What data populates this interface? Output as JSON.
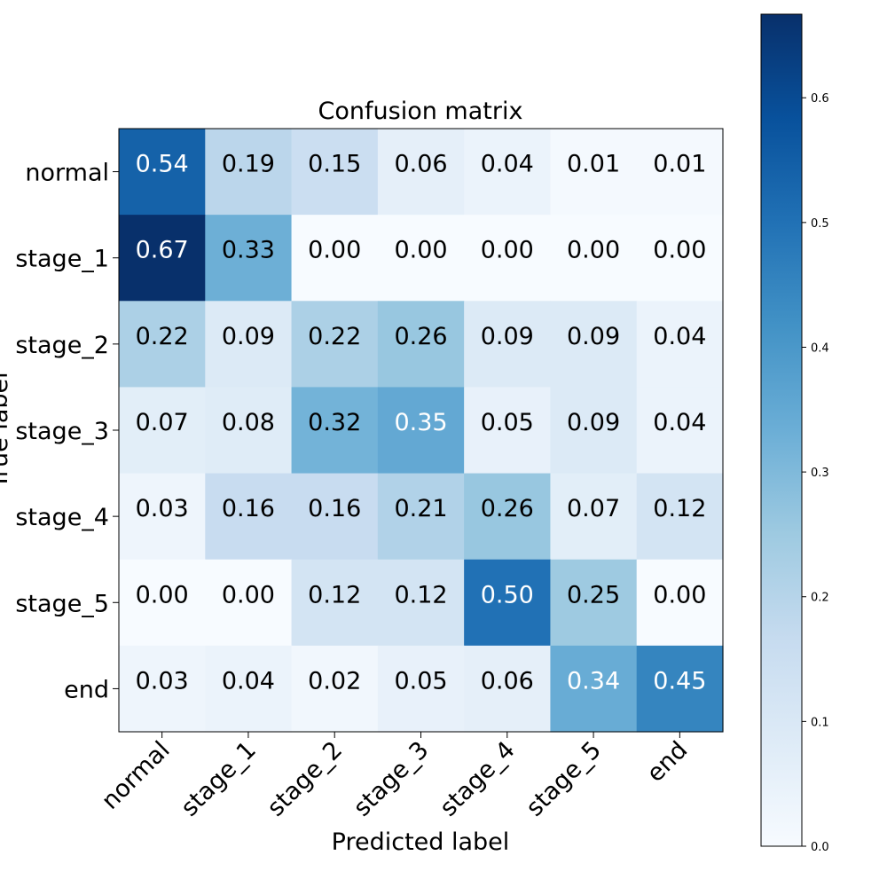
{
  "chart_data": {
    "type": "heatmap",
    "title": "Confusion matrix",
    "xlabel": "Predicted label",
    "ylabel": "True label",
    "x_categories": [
      "normal",
      "stage_1",
      "stage_2",
      "stage_3",
      "stage_4",
      "stage_5",
      "end"
    ],
    "y_categories": [
      "normal",
      "stage_1",
      "stage_2",
      "stage_3",
      "stage_4",
      "stage_5",
      "end"
    ],
    "values": [
      [
        0.54,
        0.19,
        0.15,
        0.06,
        0.04,
        0.01,
        0.01
      ],
      [
        0.67,
        0.33,
        0.0,
        0.0,
        0.0,
        0.0,
        0.0
      ],
      [
        0.22,
        0.09,
        0.22,
        0.26,
        0.09,
        0.09,
        0.04
      ],
      [
        0.07,
        0.08,
        0.32,
        0.35,
        0.05,
        0.09,
        0.04
      ],
      [
        0.03,
        0.16,
        0.16,
        0.21,
        0.26,
        0.07,
        0.12
      ],
      [
        0.0,
        0.0,
        0.12,
        0.12,
        0.5,
        0.25,
        0.0
      ],
      [
        0.03,
        0.04,
        0.02,
        0.05,
        0.06,
        0.34,
        0.45
      ]
    ],
    "colormap": "Blues",
    "colorbar": {
      "min": 0.0,
      "max": 0.667,
      "ticks": [
        "0.0",
        "0.1",
        "0.2",
        "0.3",
        "0.4",
        "0.5",
        "0.6"
      ]
    },
    "text_threshold": 0.333
  }
}
